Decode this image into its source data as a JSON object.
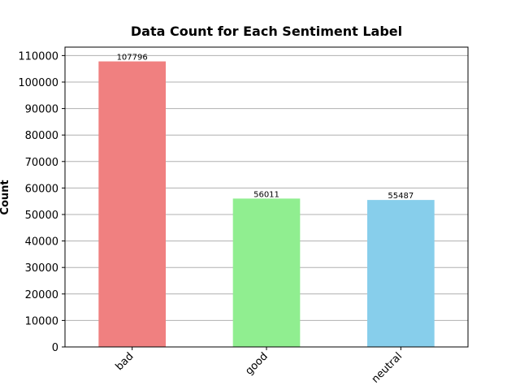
{
  "chart_data": {
    "type": "bar",
    "title": "Data Count for Each Sentiment Label",
    "xlabel": "",
    "ylabel": "Count",
    "categories": [
      "bad",
      "good",
      "neutral"
    ],
    "values": [
      107796,
      56011,
      55487
    ],
    "value_labels": [
      "107796",
      "56011",
      "55487"
    ],
    "colors": [
      "#f08080",
      "#90ee90",
      "#87ceeb"
    ],
    "ylim": [
      0,
      113185.8
    ],
    "yticks": [
      0,
      10000,
      20000,
      30000,
      40000,
      50000,
      60000,
      70000,
      80000,
      90000,
      100000,
      110000
    ],
    "ytick_labels": [
      "0",
      "10000",
      "20000",
      "30000",
      "40000",
      "50000",
      "60000",
      "70000",
      "80000",
      "90000",
      "100000",
      "110000"
    ],
    "grid": "y",
    "legend": "none",
    "xtick_rotation_deg": 45
  }
}
